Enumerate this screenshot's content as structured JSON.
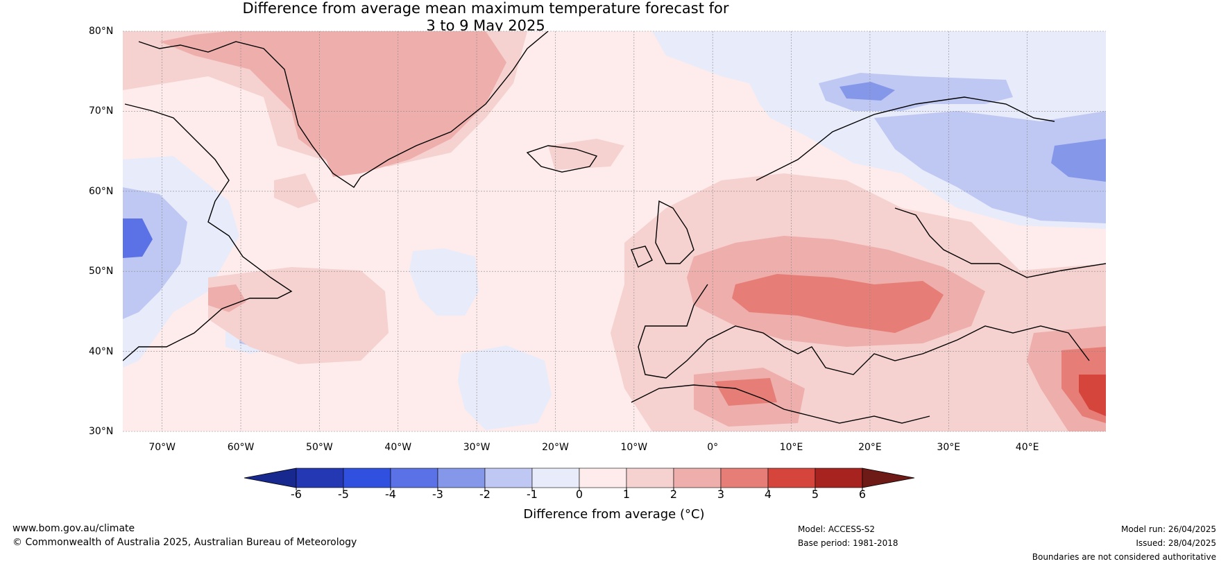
{
  "title": {
    "line1": "Difference from average mean maximum temperature forecast for",
    "line2": "3 to 9 May 2025"
  },
  "lat_labels": [
    "80°N",
    "70°N",
    "60°N",
    "50°N",
    "40°N",
    "30°N"
  ],
  "lon_labels": [
    "70°W",
    "60°W",
    "50°W",
    "40°W",
    "30°W",
    "20°W",
    "10°W",
    "0°",
    "10°E",
    "20°E",
    "30°E",
    "40°E"
  ],
  "colorbar": {
    "ticks": [
      "-6",
      "-5",
      "-4",
      "-3",
      "-2",
      "-1",
      "0",
      "1",
      "2",
      "3",
      "4",
      "5",
      "6"
    ],
    "colors": [
      "#17288f",
      "#2538b3",
      "#3050df",
      "#5b72e6",
      "#8597e9",
      "#bfc8f2",
      "#e7ebfa",
      "#fdeceb",
      "#f5d1cf",
      "#eeaeab",
      "#e67d76",
      "#d6453c",
      "#a7231f",
      "#6e1a17"
    ],
    "label": "Difference from average (°C)"
  },
  "footer": {
    "site": "www.bom.gov.au/climate",
    "copyright": "© Commonwealth of Australia 2025, Australian Bureau of Meteorology",
    "model": "Model: ACCESS-S2",
    "base_period": "Base period: 1981-2018",
    "model_run": "Model run: 26/04/2025",
    "issued": "Issued: 28/04/2025",
    "disclaimer": "Boundaries are not considered authoritative"
  }
}
